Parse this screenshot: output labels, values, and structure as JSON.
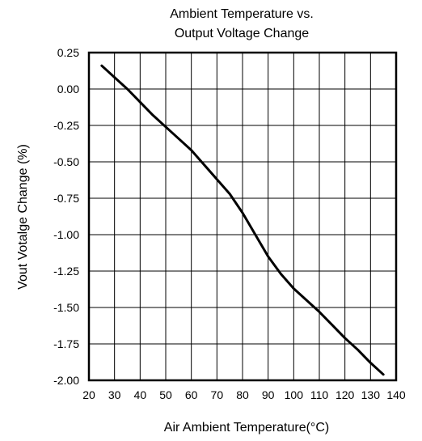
{
  "chart_data": {
    "type": "line",
    "title_lines": [
      "Ambient Temperature vs.",
      "Output Voltage Change"
    ],
    "xlabel": "Air Ambient Temperature(°C)",
    "ylabel": "Vout Votalge Change (%)",
    "xlim": [
      20,
      140
    ],
    "ylim": [
      -2.0,
      0.25
    ],
    "x_ticks": [
      20,
      30,
      40,
      50,
      60,
      70,
      80,
      90,
      100,
      110,
      120,
      130,
      140
    ],
    "x_tick_labels": [
      "20",
      "30",
      "40",
      "50",
      "60",
      "70",
      "80",
      "90",
      "100",
      "110",
      "120",
      "130",
      "140"
    ],
    "y_ticks": [
      0.25,
      0.0,
      -0.25,
      -0.5,
      -0.75,
      -1.0,
      -1.25,
      -1.5,
      -1.75,
      -2.0
    ],
    "y_tick_labels": [
      "0.25",
      "0.00",
      "-0.25",
      "-0.50",
      "-0.75",
      "-1.00",
      "-1.25",
      "-1.50",
      "-1.75",
      "-2.00"
    ],
    "grid": true,
    "series": [
      {
        "x": [
          25,
          30,
          35,
          40,
          45,
          50,
          55,
          60,
          65,
          70,
          75,
          80,
          85,
          90,
          95,
          100,
          105,
          110,
          115,
          120,
          125,
          130,
          135
        ],
        "y": [
          0.16,
          0.08,
          0.0,
          -0.09,
          -0.18,
          -0.26,
          -0.34,
          -0.42,
          -0.52,
          -0.62,
          -0.72,
          -0.85,
          -1.0,
          -1.15,
          -1.27,
          -1.37,
          -1.45,
          -1.53,
          -1.62,
          -1.71,
          -1.79,
          -1.88,
          -1.96
        ],
        "color": "#000000"
      }
    ]
  }
}
